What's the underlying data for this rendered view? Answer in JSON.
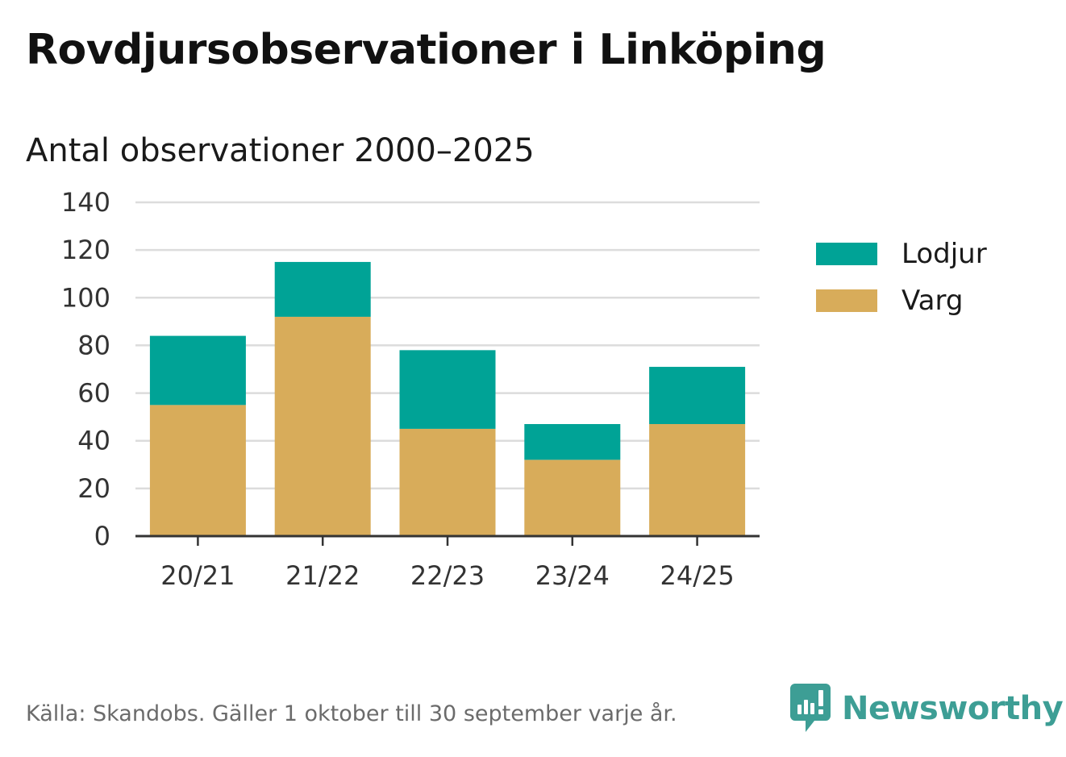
{
  "chart_data": {
    "type": "bar",
    "stacked": true,
    "title": "Rovdjursobservationer i Linköping",
    "subtitle": "Antal observationer 2000–2025",
    "categories": [
      "20/21",
      "21/22",
      "22/23",
      "23/24",
      "24/25"
    ],
    "series": [
      {
        "name": "Varg",
        "color": "#d8ac5a",
        "values": [
          55,
          92,
          45,
          32,
          47
        ]
      },
      {
        "name": "Lodjur",
        "color": "#00a396",
        "values": [
          29,
          23,
          33,
          15,
          24
        ]
      }
    ],
    "legend_order": [
      "Lodjur",
      "Varg"
    ],
    "ylim": [
      0,
      140
    ],
    "yticks": [
      0,
      20,
      40,
      60,
      80,
      100,
      120,
      140
    ],
    "xlabel": "",
    "ylabel": "",
    "grid": true,
    "legend_position": "right"
  },
  "footer": {
    "source": "Källa: Skandobs. Gäller 1 oktober till 30 september varje år.",
    "brand": "Newsworthy",
    "brand_color": "#3d9e95"
  }
}
